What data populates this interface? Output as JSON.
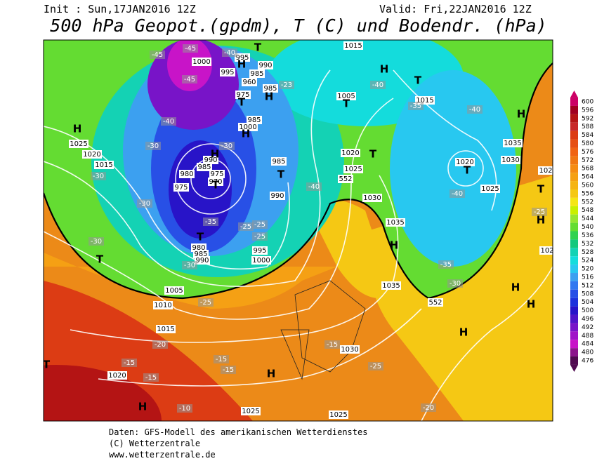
{
  "header": {
    "init": "Init : Sun,17JAN2016 12Z",
    "valid": "Valid: Fri,22JAN2016 12Z",
    "title": "500 hPa Geopot.(gpdm), T (C) und Bodendr. (hPa)"
  },
  "colorbar": {
    "levels": [
      600,
      596,
      592,
      588,
      584,
      580,
      576,
      572,
      568,
      564,
      560,
      556,
      552,
      548,
      544,
      540,
      536,
      532,
      528,
      524,
      520,
      516,
      512,
      508,
      504,
      500,
      496,
      492,
      488,
      484,
      480,
      476
    ],
    "colors": [
      "#cc0066",
      "#a00020",
      "#b41414",
      "#c82828",
      "#dc3c14",
      "#e65014",
      "#f06414",
      "#f07814",
      "#f58c14",
      "#f5a014",
      "#f5b414",
      "#f5c814",
      "#f5e614",
      "#c8f000",
      "#96e632",
      "#64dc32",
      "#32d250",
      "#14c87d",
      "#14d2b4",
      "#14dcdc",
      "#28c8f0",
      "#3ca0f0",
      "#3278f0",
      "#2850e6",
      "#1e32dc",
      "#2814c8",
      "#5014c8",
      "#7814c8",
      "#a014c8",
      "#c814c8",
      "#8c148c",
      "#500a50"
    ]
  },
  "isobar_labels": [
    "1015",
    "1000",
    "995",
    "995",
    "985",
    "990",
    "960",
    "975",
    "985",
    "1025",
    "1020",
    "1015",
    "1000",
    "985",
    "990",
    "985",
    "975",
    "980",
    "970",
    "975",
    "985",
    "990",
    "980",
    "985",
    "990",
    "995",
    "1000",
    "1005",
    "1010",
    "1015",
    "1020",
    "1025",
    "1025",
    "1030",
    "1005",
    "1015",
    "1020",
    "1025",
    "552",
    "1030",
    "1035",
    "1020",
    "1025",
    "1035",
    "1030",
    "1035",
    "552",
    "102",
    "102"
  ],
  "temperature_labels": [
    "-23",
    "-45",
    "-45",
    "-40",
    "-45",
    "-40",
    "-30",
    "-30",
    "-30",
    "-30",
    "-25",
    "-25",
    "-25",
    "-35",
    "-30",
    "-30",
    "-25",
    "-20",
    "-15",
    "-15",
    "-15",
    "-15",
    "-10",
    "-15",
    "-25",
    "-20",
    "-40",
    "-35",
    "-40",
    "-40",
    "-40",
    "-30",
    "-35",
    "-25"
  ],
  "pressure_centers": [
    "H",
    "H",
    "H",
    "H",
    "H",
    "H",
    "H",
    "H",
    "H",
    "H",
    "H",
    "H",
    "H",
    "H",
    "T",
    "T",
    "T",
    "T",
    "T",
    "T",
    "T",
    "T",
    "T",
    "T",
    "T",
    "T"
  ],
  "footer": {
    "source": "Daten: GFS-Modell des amerikanischen Wetterdienstes",
    "copyright": "(C) Wetterzentrale",
    "url": "www.wetterzentrale.de"
  }
}
